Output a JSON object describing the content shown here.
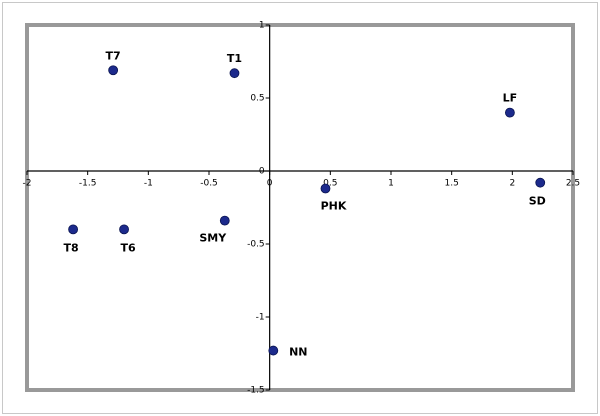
{
  "chart_data": {
    "type": "scatter",
    "color": "#1c2a8c",
    "labels": [
      "T7",
      "T1",
      "LF",
      "SD",
      "PHK",
      "T8",
      "T6",
      "SMY",
      "NN"
    ],
    "x": [
      -1.29,
      -0.29,
      1.98,
      2.23,
      0.46,
      -1.62,
      -1.2,
      -0.37,
      0.03
    ],
    "y": [
      0.69,
      0.67,
      0.4,
      -0.08,
      -0.12,
      -0.4,
      -0.4,
      -0.34,
      -1.23
    ],
    "xlim": [
      -2,
      2.5
    ],
    "ylim": [
      -1.5,
      1
    ],
    "xticks": [
      -2,
      -1.5,
      -1,
      -0.5,
      0,
      0.5,
      1,
      1.5,
      2,
      2.5
    ],
    "yticks": [
      -1.5,
      -1,
      -0.5,
      0,
      0.5,
      1
    ]
  }
}
